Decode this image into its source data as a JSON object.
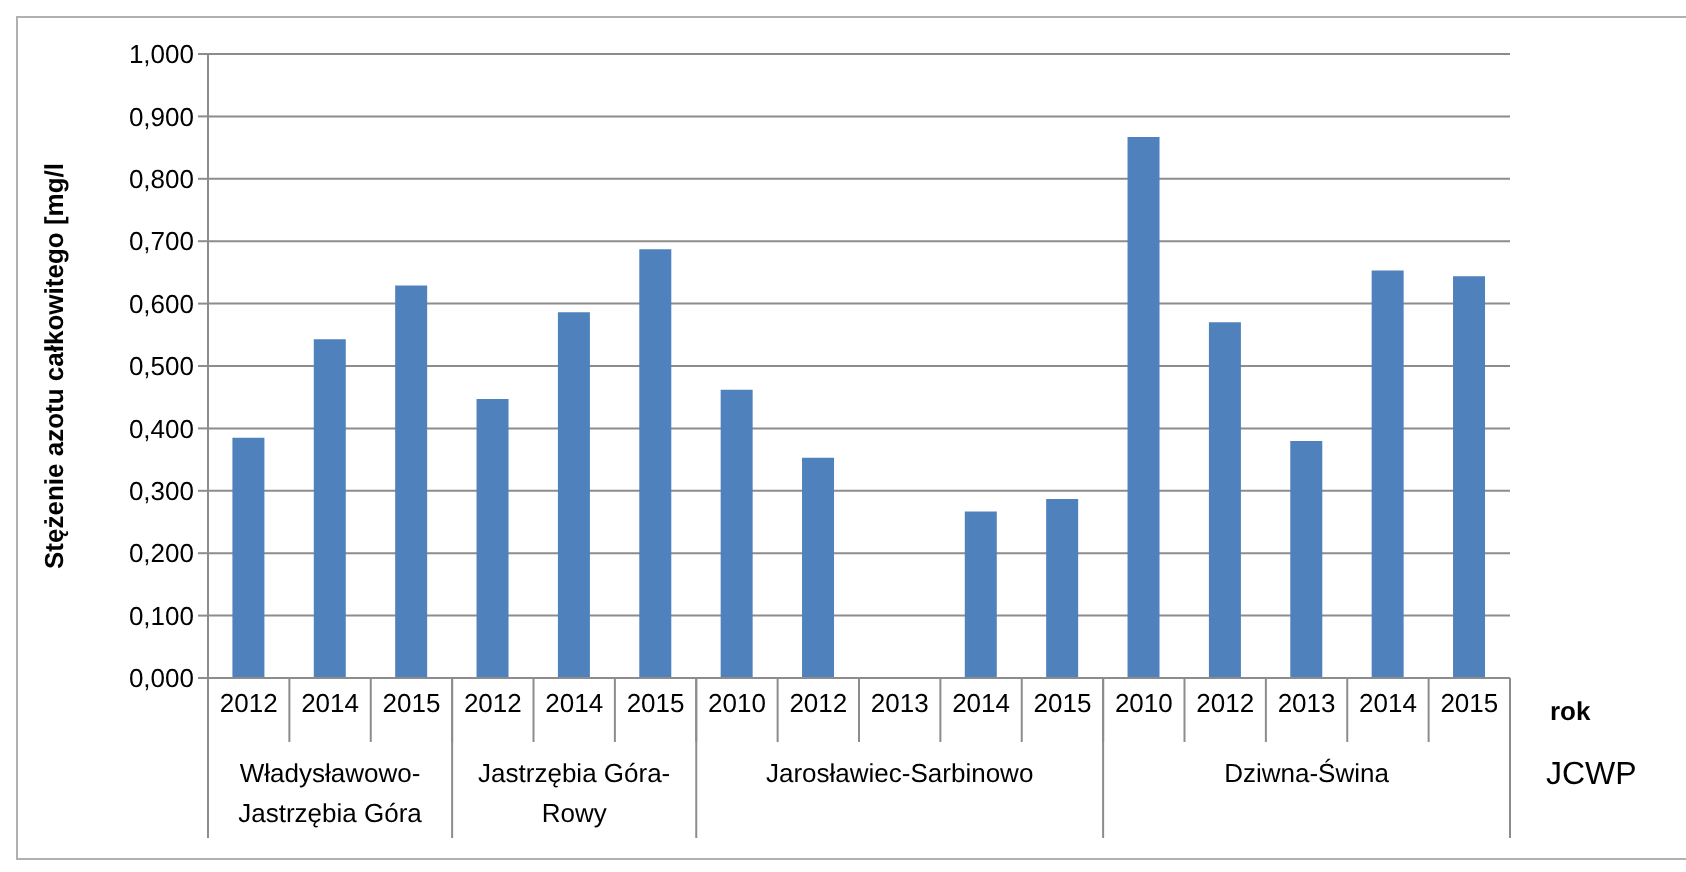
{
  "chart_data": {
    "type": "bar",
    "ylabel": "Stężenie azotu całkowitego  [mg/l",
    "xlabel": "rok",
    "categories": [
      "2012",
      "2014",
      "2015",
      "2012",
      "2014",
      "2015",
      "2010",
      "2012",
      "2013",
      "2014",
      "2015",
      "2010",
      "2012",
      "2013",
      "2014",
      "2015"
    ],
    "values": [
      0.385,
      0.543,
      0.629,
      0.447,
      0.586,
      0.687,
      0.462,
      0.353,
      null,
      0.267,
      0.287,
      0.867,
      0.57,
      0.38,
      0.653,
      0.644
    ],
    "color": "#4f81bd",
    "ylim": [
      0,
      1
    ],
    "yticks": [
      {
        "value": 0,
        "label": "0,000"
      },
      {
        "value": 0.1,
        "label": "0,100"
      },
      {
        "value": 0.2,
        "label": "0,200"
      },
      {
        "value": 0.3,
        "label": "0,300"
      },
      {
        "value": 0.4,
        "label": "0,400"
      },
      {
        "value": 0.5,
        "label": "0,500"
      },
      {
        "value": 0.6,
        "label": "0,600"
      },
      {
        "value": 0.7,
        "label": "0,700"
      },
      {
        "value": 0.8,
        "label": "0,800"
      },
      {
        "value": 0.9,
        "label": "0,900"
      },
      {
        "value": 1,
        "label": "1,000"
      }
    ],
    "grid": "y",
    "annotations": [
      "Władysławowo-Jastrzębia Góra",
      "Jastrzębia Góra-Rowy",
      "Jarosławiec-Sarbinowo",
      "Dziwna-Świna",
      "JCWP"
    ]
  }
}
